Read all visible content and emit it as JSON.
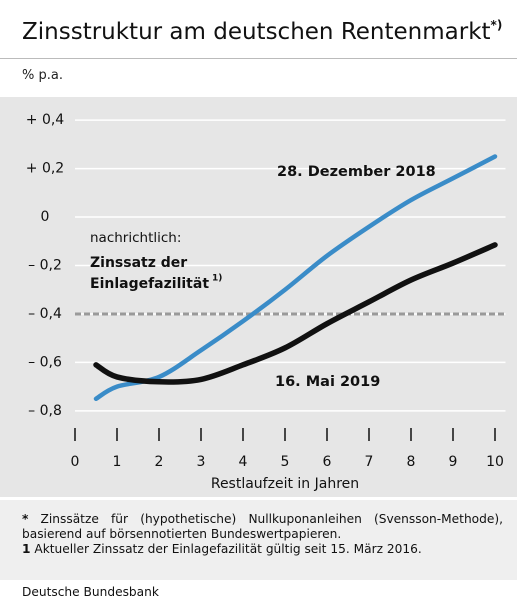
{
  "chart_data": {
    "type": "line",
    "title": "Zinsstruktur am deutschen Rentenmarkt",
    "title_note": "*)",
    "subtitle": "% p.a.",
    "x_label": "Restlaufzeit in Jahren",
    "x": [
      0.5,
      1,
      2,
      3,
      4,
      5,
      6,
      7,
      8,
      9,
      10
    ],
    "series": [
      {
        "name": "28. Dezember 2018",
        "color": "#3a8cc8",
        "values": [
          -0.75,
          -0.7,
          -0.66,
          -0.55,
          -0.43,
          -0.3,
          -0.16,
          -0.04,
          0.07,
          0.16,
          0.25
        ]
      },
      {
        "name": "16. Mai 2019",
        "color": "#111111",
        "values": [
          -0.61,
          -0.66,
          -0.68,
          -0.67,
          -0.61,
          -0.54,
          -0.44,
          -0.35,
          -0.26,
          -0.19,
          -0.115
        ]
      }
    ],
    "reference_line": {
      "value": -0.4,
      "color": "#9a9a9a",
      "label_intro": "nachrichtlich:",
      "label_lines": [
        "Zinssatz der",
        "Einlagefazilität"
      ],
      "label_note": "1)"
    },
    "xlim": [
      0,
      10.25
    ],
    "xticks": [
      0,
      1,
      2,
      3,
      4,
      5,
      6,
      7,
      8,
      9,
      10
    ],
    "ylim": [
      -0.85,
      0.45
    ],
    "yticks": [
      {
        "value": 0.4,
        "label": "+ 0,4"
      },
      {
        "value": 0.2,
        "label": "+ 0,2"
      },
      0,
      {
        "value": -0.2,
        "label": "– 0,2"
      },
      {
        "value": -0.4,
        "label": "– 0,4"
      },
      {
        "value": -0.6,
        "label": "– 0,6"
      },
      {
        "value": -0.8,
        "label": "– 0,8"
      }
    ],
    "grid": true,
    "footnotes": [
      {
        "marker": "*",
        "text": "Zinssätze für (hypothetische) Nullkuponanleihen (Svensson-Methode), basierend auf börsennotierten Bundeswertpapieren."
      },
      {
        "marker": "1",
        "text": "Aktueller Zinssatz der Einlagefazilität gültig seit 15. März 2016."
      }
    ],
    "source": "Deutsche Bundesbank"
  }
}
